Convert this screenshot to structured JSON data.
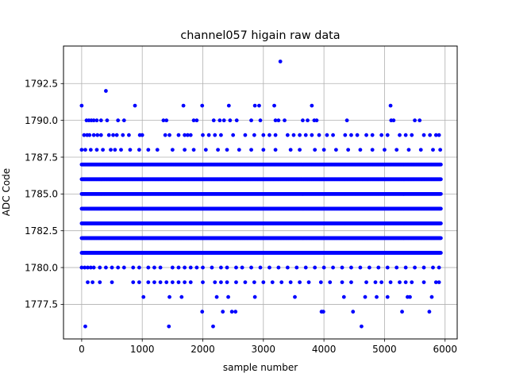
{
  "chart_data": {
    "type": "scatter",
    "title": "channel057 higain raw data",
    "xlabel": "sample number",
    "ylabel": "ADC Code",
    "xlim": [
      -300,
      6200
    ],
    "ylim": [
      1775.15,
      1795.05
    ],
    "xticks": [
      0,
      1000,
      2000,
      3000,
      4000,
      5000,
      6000
    ],
    "xtick_labels": [
      "0",
      "1000",
      "2000",
      "3000",
      "4000",
      "5000",
      "6000"
    ],
    "yticks": [
      1777.5,
      1780.0,
      1782.5,
      1785.0,
      1787.5,
      1790.0,
      1792.5
    ],
    "ytick_labels": [
      "1777.5",
      "1780.0",
      "1782.5",
      "1785.0",
      "1787.5",
      "1790.0",
      "1792.5"
    ],
    "grid": true,
    "marker_color": "#0000ff",
    "series": [
      {
        "band_levels": [
          1781,
          1782,
          1783,
          1784,
          1785,
          1786,
          1787
        ],
        "band_x_range": [
          0,
          5930
        ],
        "points": [
          [
            0,
            1791
          ],
          [
            60,
            1776
          ],
          [
            80,
            1790
          ],
          [
            400,
            1792
          ],
          [
            880,
            1791
          ],
          [
            1440,
            1776
          ],
          [
            1680,
            1791
          ],
          [
            1990,
            1791
          ],
          [
            2170,
            1776
          ],
          [
            2430,
            1791
          ],
          [
            2860,
            1791
          ],
          [
            2930,
            1791
          ],
          [
            3180,
            1791
          ],
          [
            3280,
            1794
          ],
          [
            3800,
            1791
          ],
          [
            4620,
            1776
          ],
          [
            5100,
            1791
          ],
          [
            120,
            1790
          ],
          [
            160,
            1790
          ],
          [
            200,
            1790
          ],
          [
            250,
            1790
          ],
          [
            320,
            1790
          ],
          [
            420,
            1790
          ],
          [
            600,
            1790
          ],
          [
            700,
            1790
          ],
          [
            1350,
            1790
          ],
          [
            1400,
            1790
          ],
          [
            1850,
            1790
          ],
          [
            1900,
            1790
          ],
          [
            2180,
            1790
          ],
          [
            2280,
            1790
          ],
          [
            2350,
            1790
          ],
          [
            2450,
            1790
          ],
          [
            2560,
            1790
          ],
          [
            2800,
            1790
          ],
          [
            2950,
            1790
          ],
          [
            3200,
            1790
          ],
          [
            3250,
            1790
          ],
          [
            3350,
            1790
          ],
          [
            3650,
            1790
          ],
          [
            3730,
            1790
          ],
          [
            3840,
            1790
          ],
          [
            3880,
            1790
          ],
          [
            4380,
            1790
          ],
          [
            5110,
            1790
          ],
          [
            5150,
            1790
          ],
          [
            5500,
            1790
          ],
          [
            5580,
            1790
          ],
          [
            40,
            1789
          ],
          [
            90,
            1789
          ],
          [
            130,
            1789
          ],
          [
            200,
            1789
          ],
          [
            260,
            1789
          ],
          [
            320,
            1789
          ],
          [
            450,
            1789
          ],
          [
            520,
            1789
          ],
          [
            580,
            1789
          ],
          [
            680,
            1789
          ],
          [
            780,
            1789
          ],
          [
            960,
            1789
          ],
          [
            1000,
            1789
          ],
          [
            1380,
            1789
          ],
          [
            1450,
            1789
          ],
          [
            1600,
            1789
          ],
          [
            1700,
            1789
          ],
          [
            1750,
            1789
          ],
          [
            1800,
            1789
          ],
          [
            2000,
            1789
          ],
          [
            2100,
            1789
          ],
          [
            2200,
            1789
          ],
          [
            2300,
            1789
          ],
          [
            2500,
            1789
          ],
          [
            2700,
            1789
          ],
          [
            2850,
            1789
          ],
          [
            3000,
            1789
          ],
          [
            3100,
            1789
          ],
          [
            3200,
            1789
          ],
          [
            3400,
            1789
          ],
          [
            3500,
            1789
          ],
          [
            3600,
            1789
          ],
          [
            3700,
            1789
          ],
          [
            3800,
            1789
          ],
          [
            3920,
            1789
          ],
          [
            4050,
            1789
          ],
          [
            4150,
            1789
          ],
          [
            4350,
            1789
          ],
          [
            4450,
            1789
          ],
          [
            4550,
            1789
          ],
          [
            4700,
            1789
          ],
          [
            4800,
            1789
          ],
          [
            4950,
            1789
          ],
          [
            5050,
            1789
          ],
          [
            5250,
            1789
          ],
          [
            5350,
            1789
          ],
          [
            5450,
            1789
          ],
          [
            5650,
            1789
          ],
          [
            5750,
            1789
          ],
          [
            5850,
            1789
          ],
          [
            5900,
            1789
          ],
          [
            0,
            1788
          ],
          [
            60,
            1788
          ],
          [
            150,
            1788
          ],
          [
            250,
            1788
          ],
          [
            350,
            1788
          ],
          [
            480,
            1788
          ],
          [
            550,
            1788
          ],
          [
            650,
            1788
          ],
          [
            800,
            1788
          ],
          [
            950,
            1788
          ],
          [
            1100,
            1788
          ],
          [
            1250,
            1788
          ],
          [
            1500,
            1788
          ],
          [
            1700,
            1788
          ],
          [
            1850,
            1788
          ],
          [
            2050,
            1788
          ],
          [
            2250,
            1788
          ],
          [
            2400,
            1788
          ],
          [
            2600,
            1788
          ],
          [
            2800,
            1788
          ],
          [
            3000,
            1788
          ],
          [
            3200,
            1788
          ],
          [
            3450,
            1788
          ],
          [
            3600,
            1788
          ],
          [
            3850,
            1788
          ],
          [
            4000,
            1788
          ],
          [
            4200,
            1788
          ],
          [
            4400,
            1788
          ],
          [
            4600,
            1788
          ],
          [
            4800,
            1788
          ],
          [
            5000,
            1788
          ],
          [
            5200,
            1788
          ],
          [
            5400,
            1788
          ],
          [
            5600,
            1788
          ],
          [
            5800,
            1788
          ],
          [
            5920,
            1788
          ],
          [
            0,
            1780
          ],
          [
            50,
            1780
          ],
          [
            100,
            1780
          ],
          [
            150,
            1780
          ],
          [
            200,
            1780
          ],
          [
            300,
            1780
          ],
          [
            400,
            1780
          ],
          [
            500,
            1780
          ],
          [
            600,
            1780
          ],
          [
            700,
            1780
          ],
          [
            850,
            1780
          ],
          [
            950,
            1780
          ],
          [
            1100,
            1780
          ],
          [
            1200,
            1780
          ],
          [
            1300,
            1780
          ],
          [
            1500,
            1780
          ],
          [
            1600,
            1780
          ],
          [
            1700,
            1780
          ],
          [
            1800,
            1780
          ],
          [
            1900,
            1780
          ],
          [
            2000,
            1780
          ],
          [
            2150,
            1780
          ],
          [
            2300,
            1780
          ],
          [
            2400,
            1780
          ],
          [
            2550,
            1780
          ],
          [
            2650,
            1780
          ],
          [
            2800,
            1780
          ],
          [
            2950,
            1780
          ],
          [
            3100,
            1780
          ],
          [
            3250,
            1780
          ],
          [
            3400,
            1780
          ],
          [
            3550,
            1780
          ],
          [
            3700,
            1780
          ],
          [
            3850,
            1780
          ],
          [
            4000,
            1780
          ],
          [
            4150,
            1780
          ],
          [
            4300,
            1780
          ],
          [
            4450,
            1780
          ],
          [
            4600,
            1780
          ],
          [
            4750,
            1780
          ],
          [
            4900,
            1780
          ],
          [
            5050,
            1780
          ],
          [
            5200,
            1780
          ],
          [
            5350,
            1780
          ],
          [
            5500,
            1780
          ],
          [
            5650,
            1780
          ],
          [
            5800,
            1780
          ],
          [
            5900,
            1780
          ],
          [
            100,
            1779
          ],
          [
            180,
            1779
          ],
          [
            300,
            1779
          ],
          [
            500,
            1779
          ],
          [
            850,
            1779
          ],
          [
            950,
            1779
          ],
          [
            1100,
            1779
          ],
          [
            1200,
            1779
          ],
          [
            1300,
            1779
          ],
          [
            1400,
            1779
          ],
          [
            1500,
            1779
          ],
          [
            1600,
            1779
          ],
          [
            1700,
            1779
          ],
          [
            1800,
            1779
          ],
          [
            2000,
            1779
          ],
          [
            2200,
            1779
          ],
          [
            2300,
            1779
          ],
          [
            2400,
            1779
          ],
          [
            2550,
            1779
          ],
          [
            2700,
            1779
          ],
          [
            2850,
            1779
          ],
          [
            3000,
            1779
          ],
          [
            3150,
            1779
          ],
          [
            3300,
            1779
          ],
          [
            3450,
            1779
          ],
          [
            3600,
            1779
          ],
          [
            3750,
            1779
          ],
          [
            3950,
            1779
          ],
          [
            4100,
            1779
          ],
          [
            4300,
            1779
          ],
          [
            4450,
            1779
          ],
          [
            4700,
            1779
          ],
          [
            4850,
            1779
          ],
          [
            4950,
            1779
          ],
          [
            5100,
            1779
          ],
          [
            5250,
            1779
          ],
          [
            5350,
            1779
          ],
          [
            5450,
            1779
          ],
          [
            5650,
            1779
          ],
          [
            5850,
            1779
          ],
          [
            5900,
            1779
          ],
          [
            1020,
            1778
          ],
          [
            1450,
            1778
          ],
          [
            1650,
            1778
          ],
          [
            2230,
            1778
          ],
          [
            2420,
            1778
          ],
          [
            2860,
            1778
          ],
          [
            3520,
            1778
          ],
          [
            4330,
            1778
          ],
          [
            4680,
            1778
          ],
          [
            4870,
            1778
          ],
          [
            5050,
            1778
          ],
          [
            5380,
            1778
          ],
          [
            5420,
            1778
          ],
          [
            5780,
            1778
          ],
          [
            1990,
            1777
          ],
          [
            2330,
            1777
          ],
          [
            2480,
            1777
          ],
          [
            2540,
            1777
          ],
          [
            3960,
            1777
          ],
          [
            3990,
            1777
          ],
          [
            4480,
            1777
          ],
          [
            5290,
            1777
          ],
          [
            5740,
            1777
          ]
        ]
      }
    ]
  }
}
